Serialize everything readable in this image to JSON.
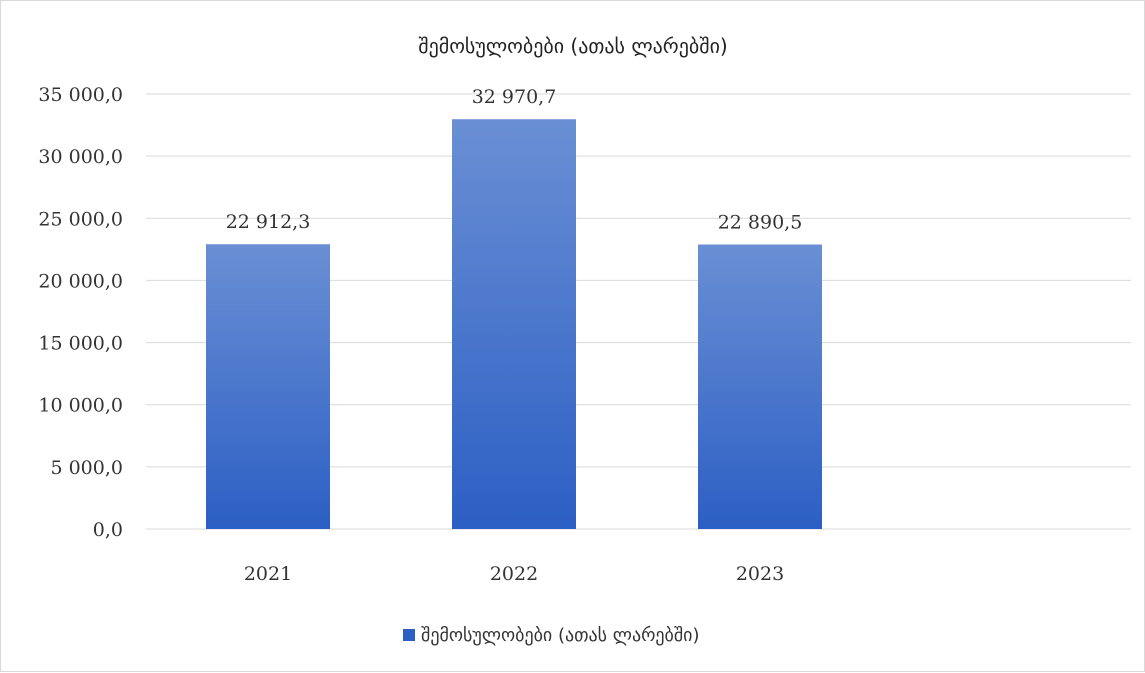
{
  "chart_data": {
    "type": "bar",
    "title": "შემოსულობები (ათას ლარებში)",
    "categories": [
      "2021",
      "2022",
      "2023"
    ],
    "series": [
      {
        "name": "შემოსულობები (ათას ლარებში)",
        "values": [
          22912.3,
          32970.7,
          22890.5
        ],
        "value_labels": [
          "22 912,3",
          "32 970,7",
          "22 890,5"
        ]
      }
    ],
    "ylim": [
      0,
      35000
    ],
    "y_ticks": [
      0,
      5000,
      10000,
      15000,
      20000,
      25000,
      30000,
      35000
    ],
    "y_tick_labels": [
      "0,0",
      "5 000,0",
      "10 000,0",
      "15 000,0",
      "20 000,0",
      "25 000,0",
      "30 000,0",
      "35 000,0"
    ],
    "grid": true,
    "legend_position": "bottom-center",
    "colors": {
      "bar_top": "#6a8fd4",
      "bar_bottom": "#2c5fc4",
      "grid": "#d9d9d9"
    }
  }
}
